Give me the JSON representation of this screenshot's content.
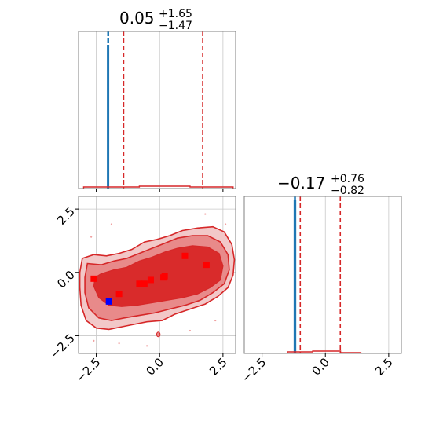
{
  "chart_data": {
    "type": "corner",
    "titles": {
      "param1": {
        "value": "0.05",
        "plus": "+1.65",
        "minus": "−1.47"
      },
      "param2": {
        "value": "−0.17",
        "plus": "+0.76",
        "minus": "−0.82"
      }
    },
    "x_ticks": [
      "−2.5",
      "0.0",
      "2.5"
    ],
    "y_ticks": [
      "2.5",
      "0.0",
      "−2.5"
    ],
    "xlim": [
      -3.2,
      3.0
    ],
    "ylim": [
      -3.2,
      3.0
    ],
    "hist1": {
      "quantile_lines": [
        -1.42,
        0.05,
        1.7
      ],
      "truth": -2.03,
      "blue_hist_x": [
        -2.05,
        -2.02
      ],
      "red_hist_x": [
        -3.0,
        2.9
      ]
    },
    "hist2": {
      "quantile_lines": [
        -0.99,
        -0.17,
        0.59
      ],
      "truth": -1.2,
      "blue_hist_x": [
        -1.22,
        -1.18
      ]
    },
    "scatter_red": [
      [
        -2.6,
        -0.25
      ],
      [
        -1.6,
        -0.85
      ],
      [
        -0.8,
        -0.45
      ],
      [
        -0.6,
        -0.45
      ],
      [
        -0.35,
        -0.3
      ],
      [
        0.15,
        -0.2
      ],
      [
        0.2,
        -0.15
      ],
      [
        1.0,
        0.65
      ],
      [
        1.85,
        0.3
      ]
    ],
    "scatter_blue": [
      [
        -2.0,
        -1.15
      ]
    ],
    "colors": {
      "red": "#d62728",
      "blue": "#1f77b4",
      "marker_red": "#ff0000",
      "marker_blue": "#0000ff",
      "grid": "#c8c8c8",
      "fill_outer": "#f2c8c8",
      "fill_mid": "#e88a8a",
      "fill_inner": "#d92b2b"
    },
    "grid": true
  }
}
